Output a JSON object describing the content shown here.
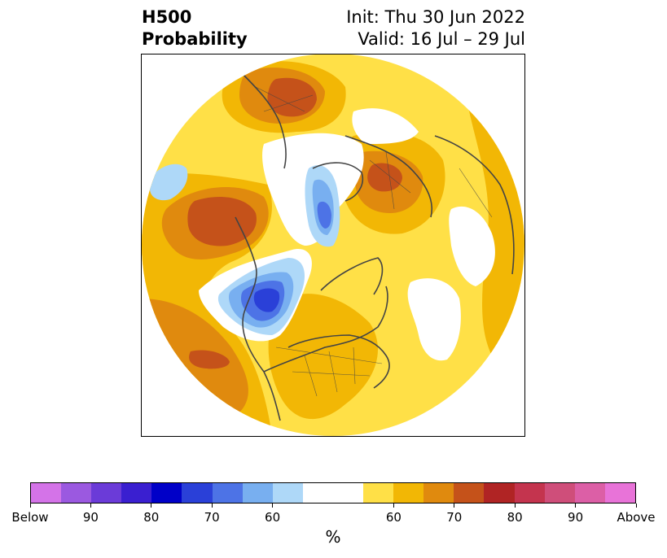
{
  "title": {
    "left_line1": "H500",
    "left_line2": "Probability",
    "right_line1": "Init: Thu 30 Jun 2022",
    "right_line2": "Valid: 16 Jul – 29 Jul"
  },
  "colorbar": {
    "unit": "%",
    "colors": [
      "#d473e8",
      "#9b59e0",
      "#6b3bd8",
      "#3a1fd0",
      "#0000c8",
      "#2a40d8",
      "#4d73e6",
      "#78aff0",
      "#aed8f8",
      "#ffffff",
      "#ffffff",
      "#ffe047",
      "#f2b705",
      "#e08a0e",
      "#c5521a",
      "#b02424",
      "#c4344e",
      "#cf4e7a",
      "#dc5fa6",
      "#e873d8"
    ],
    "ticks": [
      "Below",
      "90",
      "80",
      "70",
      "60",
      "60",
      "70",
      "80",
      "90",
      "Above"
    ]
  },
  "map": {
    "projection": "north-polar-stereographic",
    "colors": {
      "above_60": "#ffe047",
      "above_65": "#f2b705",
      "above_70": "#e08a0e",
      "above_75": "#c5521a",
      "below_60": "#aed8f8",
      "below_65": "#78aff0",
      "below_70": "#4d73e6",
      "below_75": "#2a40d8",
      "coast": "#444444"
    }
  }
}
